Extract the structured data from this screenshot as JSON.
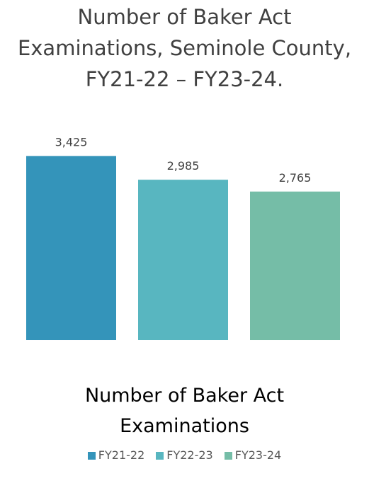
{
  "chart_data": {
    "type": "bar",
    "title": "Number of Baker Act Examinations, Seminole County, FY21-22 – FY23-24.",
    "categories": [
      "Number of Baker Act Examinations"
    ],
    "series": [
      {
        "name": "FY21-22",
        "color": "#3494ba",
        "values": [
          3425
        ],
        "value_labels": [
          "3,425"
        ]
      },
      {
        "name": "FY22-23",
        "color": "#58b6c0",
        "values": [
          2985
        ],
        "value_labels": [
          "2,985"
        ]
      },
      {
        "name": "FY23-24",
        "color": "#75bda7",
        "values": [
          2765
        ],
        "value_labels": [
          "2,765"
        ]
      }
    ],
    "ylim": [
      0,
      4000
    ],
    "legend": "bottom"
  }
}
